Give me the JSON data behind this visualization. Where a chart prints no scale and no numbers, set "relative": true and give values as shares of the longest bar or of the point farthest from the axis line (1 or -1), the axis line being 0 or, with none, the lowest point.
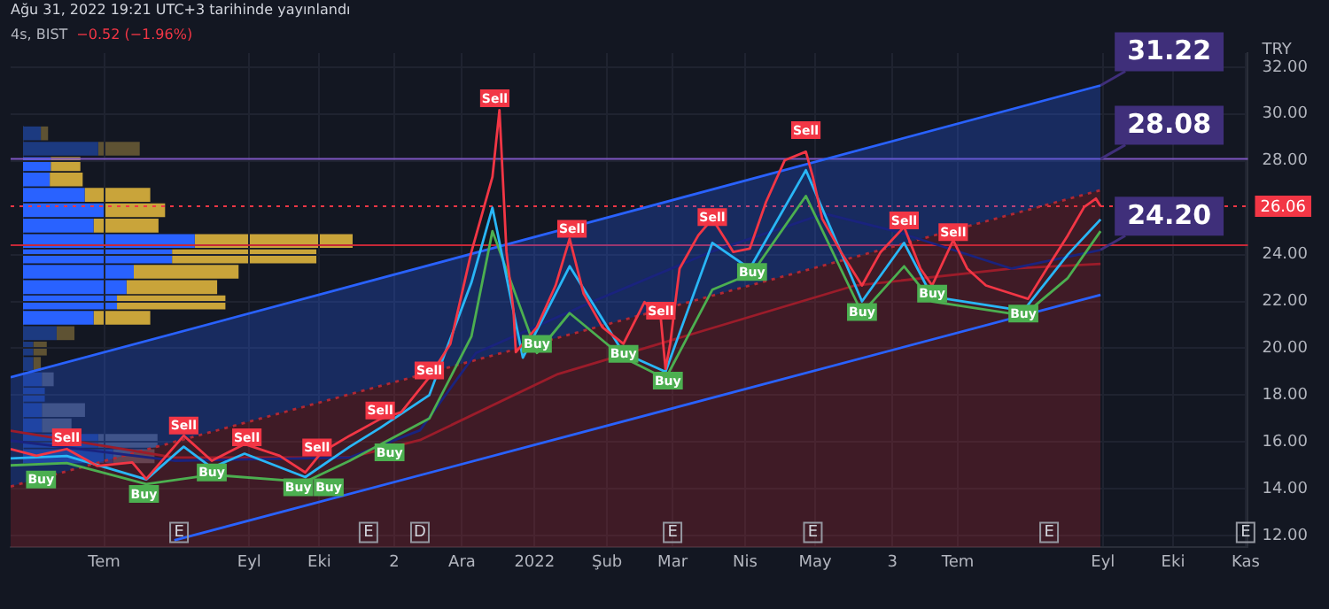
{
  "chart_data": [
    {
      "type": "line",
      "title": "4s, BIST",
      "subtitle": "−0.52 (−1.96%)",
      "ylabel": "TRY",
      "annotations": [
        "Ağu 31, 2022 19:21 UTC+3 tarihinde yayınlandı",
        {
          "text": "31.22",
          "x": "2022-08-31",
          "y": 31.22
        },
        {
          "text": "28.08",
          "x": "2022-08-31",
          "y": 28.08
        },
        {
          "text": "24.20",
          "x": "2022-08-31",
          "y": 24.2
        },
        {
          "text": "E",
          "x": "2021-08-02"
        },
        {
          "text": "E",
          "x": "2021-10-22"
        },
        {
          "text": "D",
          "x": "2021-11-13"
        },
        {
          "text": "E",
          "x": "2022-03-01"
        },
        {
          "text": "E",
          "x": "2022-04-30"
        },
        {
          "text": "E",
          "x": "2022-08-09"
        },
        {
          "text": "E",
          "x": "2022-11-01"
        }
      ],
      "xlim": [
        "2021-05-22",
        "2022-11-02"
      ],
      "xticks": [
        {
          "value": "2021-07-01",
          "label": "Tem"
        },
        {
          "value": "2021-09-01",
          "label": "Eyl"
        },
        {
          "value": "2021-10-01",
          "label": "Eki"
        },
        {
          "value": "2021-11-02",
          "label": "2"
        },
        {
          "value": "2021-12-01",
          "label": "Ara"
        },
        {
          "value": "2022-01-01",
          "label": "2022"
        },
        {
          "value": "2022-02-01",
          "label": "Şub"
        },
        {
          "value": "2022-03-01",
          "label": "Mar"
        },
        {
          "value": "2022-04-01",
          "label": "Nis"
        },
        {
          "value": "2022-05-01",
          "label": "May"
        },
        {
          "value": "2022-06-03",
          "label": "3"
        },
        {
          "value": "2022-07-01",
          "label": "Tem"
        },
        {
          "value": "2022-09-01",
          "label": "Eyl"
        },
        {
          "value": "2022-10-01",
          "label": "Eki"
        },
        {
          "value": "2022-11-01",
          "label": "Kas"
        }
      ],
      "ylim": [
        11.5,
        32.6
      ],
      "yticks": [
        {
          "value": 12,
          "label": "12.00"
        },
        {
          "value": 14,
          "label": "14.00"
        },
        {
          "value": 16,
          "label": "16.00"
        },
        {
          "value": 18,
          "label": "18.00"
        },
        {
          "value": 20,
          "label": "20.00"
        },
        {
          "value": 22,
          "label": "22.00"
        },
        {
          "value": 24,
          "label": "24.00"
        },
        {
          "value": 28,
          "label": "28.00"
        },
        {
          "value": 30,
          "label": "30.00"
        },
        {
          "value": 32,
          "label": "32.00"
        }
      ],
      "grid": true,
      "legend": false,
      "marker": "none",
      "ref_lines": [
        {
          "axis": "y",
          "value": 28.08,
          "color": "#7e57c2"
        },
        {
          "axis": "y",
          "value": 24.4,
          "color": "#c62838"
        },
        {
          "axis": "y",
          "value": 26.06,
          "label": "26.06",
          "color": "#f23645",
          "line_style": "dotted"
        }
      ],
      "series": [
        {
          "type": "area",
          "color": "#2962ff",
          "x": [
            "2021-05-22",
            "2022-08-31"
          ],
          "values": [
            18.76,
            31.22
          ]
        },
        {
          "type": "area",
          "color": "#b22833",
          "line_style": "dotted",
          "x": [
            "2021-05-22",
            "2022-08-31"
          ],
          "values": [
            14.1,
            26.75
          ]
        },
        {
          "type": "line",
          "color": "#2962ff",
          "x": [
            "2021-07-31",
            "2022-08-31"
          ],
          "values": [
            11.8,
            22.28
          ]
        },
        {
          "type": "line",
          "color": "#9b1c2a",
          "x": [
            "2021-05-22",
            "2021-07-31",
            "2021-10-14",
            "2021-11-13",
            "2022-01-11",
            "2022-05-18",
            "2022-07-24",
            "2022-08-31"
          ],
          "values": [
            16.48,
            15.34,
            15.34,
            16.08,
            18.9,
            22.68,
            23.4,
            23.6
          ]
        },
        {
          "type": "line",
          "color": "#1a237e",
          "x": [
            "2021-05-22",
            "2021-07-31",
            "2021-10-14",
            "2021-11-13",
            "2021-12-07",
            "2022-01-26",
            "2022-03-17",
            "2022-05-05",
            "2022-06-04",
            "2022-07-24",
            "2022-08-31"
          ],
          "values": [
            16.06,
            15.2,
            15.34,
            16.5,
            19.8,
            22.0,
            24.1,
            25.75,
            25.0,
            23.4,
            24.2
          ]
        },
        {
          "type": "line",
          "color": "#4caf50",
          "x": [
            "2021-05-22",
            "2021-06-15",
            "2021-07-19",
            "2021-08-16",
            "2021-09-25",
            "2021-10-14",
            "2021-11-17",
            "2021-12-05",
            "2021-12-14",
            "2022-01-02",
            "2022-01-16",
            "2022-02-08",
            "2022-02-26",
            "2022-03-18",
            "2022-04-04",
            "2022-04-27",
            "2022-05-21",
            "2022-06-08",
            "2022-06-20",
            "2022-07-29",
            "2022-08-17",
            "2022-08-31"
          ],
          "values": [
            15.0,
            15.1,
            14.2,
            14.6,
            14.3,
            15.2,
            17.0,
            20.5,
            25.0,
            19.8,
            21.5,
            19.6,
            18.7,
            22.5,
            23.2,
            26.5,
            21.5,
            23.5,
            22.0,
            21.4,
            23.0,
            25.0
          ]
        },
        {
          "type": "line",
          "color": "#29b6f6",
          "x": [
            "2021-05-22",
            "2021-06-15",
            "2021-07-19",
            "2021-08-04",
            "2021-08-16",
            "2021-08-30",
            "2021-09-25",
            "2021-10-14",
            "2021-10-27",
            "2021-11-17",
            "2021-12-05",
            "2021-12-14",
            "2021-12-27",
            "2022-01-16",
            "2022-02-08",
            "2022-02-26",
            "2022-03-18",
            "2022-04-03",
            "2022-04-27",
            "2022-05-21",
            "2022-06-08",
            "2022-06-20",
            "2022-07-29",
            "2022-08-17",
            "2022-08-31"
          ],
          "values": [
            15.3,
            15.4,
            14.4,
            15.8,
            14.9,
            15.5,
            14.5,
            15.8,
            16.6,
            18.0,
            22.8,
            26.0,
            19.6,
            23.5,
            19.8,
            19.0,
            24.5,
            23.4,
            27.6,
            22.0,
            24.5,
            22.2,
            21.6,
            24.0,
            25.5
          ]
        },
        {
          "color": "#f23645",
          "x": [
            "2021-05-22",
            "2021-06-02",
            "2021-06-15",
            "2021-06-28",
            "2021-07-13",
            "2021-07-19",
            "2021-08-04",
            "2021-08-16",
            "2021-08-30",
            "2021-09-14",
            "2021-09-25",
            "2021-10-02",
            "2021-10-14",
            "2021-10-27",
            "2021-11-05",
            "2021-11-17",
            "2021-11-26",
            "2021-12-05",
            "2021-12-09",
            "2021-12-14",
            "2021-12-17",
            "2021-12-20",
            "2021-12-23",
            "2021-12-24",
            "2022-01-02",
            "2022-01-10",
            "2022-01-16",
            "2022-01-22",
            "2022-01-30",
            "2022-02-08",
            "2022-02-17",
            "2022-02-24",
            "2022-02-26",
            "2022-02-28",
            "2022-03-04",
            "2022-03-12",
            "2022-03-18",
            "2022-03-27",
            "2022-04-03",
            "2022-04-10",
            "2022-04-18",
            "2022-04-27",
            "2022-04-30",
            "2022-05-04",
            "2022-05-12",
            "2022-05-21",
            "2022-05-29",
            "2022-06-08",
            "2022-06-15",
            "2022-06-20",
            "2022-06-29",
            "2022-07-05",
            "2022-07-13",
            "2022-07-24",
            "2022-07-31",
            "2022-08-08",
            "2022-08-17",
            "2022-08-24",
            "2022-08-29",
            "2022-08-31"
          ],
          "values": [
            15.7,
            15.41,
            15.7,
            14.98,
            15.13,
            14.42,
            16.27,
            15.2,
            15.91,
            15.41,
            14.7,
            15.56,
            16.27,
            16.98,
            17.27,
            18.77,
            20.19,
            24.11,
            25.53,
            27.31,
            30.17,
            24.11,
            21.61,
            19.83,
            20.9,
            22.68,
            24.68,
            22.33,
            20.9,
            20.19,
            21.97,
            21.26,
            19.12,
            20.19,
            23.4,
            24.82,
            25.53,
            24.11,
            24.25,
            26.25,
            28.03,
            28.39,
            27.31,
            25.53,
            24.11,
            22.68,
            24.11,
            25.18,
            23.4,
            22.68,
            24.61,
            23.4,
            22.68,
            22.33,
            22.11,
            23.4,
            24.82,
            26.03,
            26.39,
            26.06
          ]
        },
        {
          "type": "scatter",
          "name": "Sell",
          "marker": "square",
          "color": "#f23645",
          "x": [
            "2021-06-15",
            "2021-08-04",
            "2021-08-31",
            "2021-09-30",
            "2021-10-27",
            "2021-11-17",
            "2021-12-15",
            "2022-01-17",
            "2022-02-24",
            "2022-03-18",
            "2022-04-27",
            "2022-06-08",
            "2022-06-29"
          ],
          "values": [
            16.2,
            16.7,
            16.2,
            15.77,
            17.34,
            19.05,
            30.67,
            25.1,
            21.6,
            25.6,
            29.31,
            25.46,
            24.96
          ]
        },
        {
          "type": "scatter",
          "name": "Buy",
          "marker": "square",
          "color": "#4caf50",
          "x": [
            "2021-06-04",
            "2021-07-18",
            "2021-08-16",
            "2021-09-22",
            "2021-10-05",
            "2021-10-31",
            "2022-01-02",
            "2022-02-08",
            "2022-02-27",
            "2022-04-04",
            "2022-05-21",
            "2022-06-20",
            "2022-07-29"
          ],
          "values": [
            14.4,
            13.78,
            14.7,
            14.07,
            14.07,
            15.56,
            20.19,
            19.76,
            18.62,
            23.26,
            21.55,
            22.33,
            21.48
          ]
        }
      ]
    },
    {
      "type": "bar",
      "orientation": "horizontal",
      "stacked": true,
      "relative": true,
      "legend": false,
      "categories": [
        null,
        null,
        null,
        null,
        null,
        null,
        null,
        null,
        null,
        null,
        null,
        null,
        null,
        null,
        null,
        null,
        null,
        null,
        null,
        null,
        null,
        null
      ],
      "series": [
        {
          "colors": [
            "#1c3a80",
            "#1c3a80",
            "#2962ff",
            "#2962ff",
            "#2962ff",
            "#2962ff",
            "#2962ff",
            "#2962ff",
            "#2962ff",
            "#2962ff",
            "#2962ff",
            "#2962ff",
            "#2962ff",
            "#1c3a80",
            "#1c3a80",
            "#1c3a80",
            "#1c3a80",
            "#1c3a80",
            "#1c3a80",
            "#1c3a80",
            "#1c3a80",
            "#1c3a80"
          ],
          "values": [
            0.054,
            0.228,
            0.084,
            0.081,
            0.187,
            0.246,
            0.214,
            0.521,
            0.452,
            0.336,
            0.314,
            0.285,
            0.214,
            0.102,
            0.031,
            0.031,
            0.057,
            0.066,
            0.057,
            0.057,
            0.228,
            0.273
          ]
        },
        {
          "colors": [
            "#5e5233",
            "#5e5233",
            "#c9a43a",
            "#c9a43a",
            "#c9a43a",
            "#c9a43a",
            "#c9a43a",
            "#c9a43a",
            "#c9a43a",
            "#c9a43a",
            "#c9a43a",
            "#c9a43a",
            "#c9a43a",
            "#5e5233",
            "#5e5233",
            "#5e5233",
            "#4a4f5e",
            "#4a4f5e",
            "#4a4f5e",
            "#4a4f5e",
            "#4a4f5e",
            "#4a4f5e"
          ],
          "values": [
            0.022,
            0.126,
            0.09,
            0.1,
            0.199,
            0.185,
            0.197,
            0.479,
            0.438,
            0.318,
            0.275,
            0.329,
            0.172,
            0.054,
            0.041,
            0.023,
            0.036,
            0.0,
            0.131,
            0.09,
            0.18,
            0.126
          ]
        }
      ]
    }
  ]
}
